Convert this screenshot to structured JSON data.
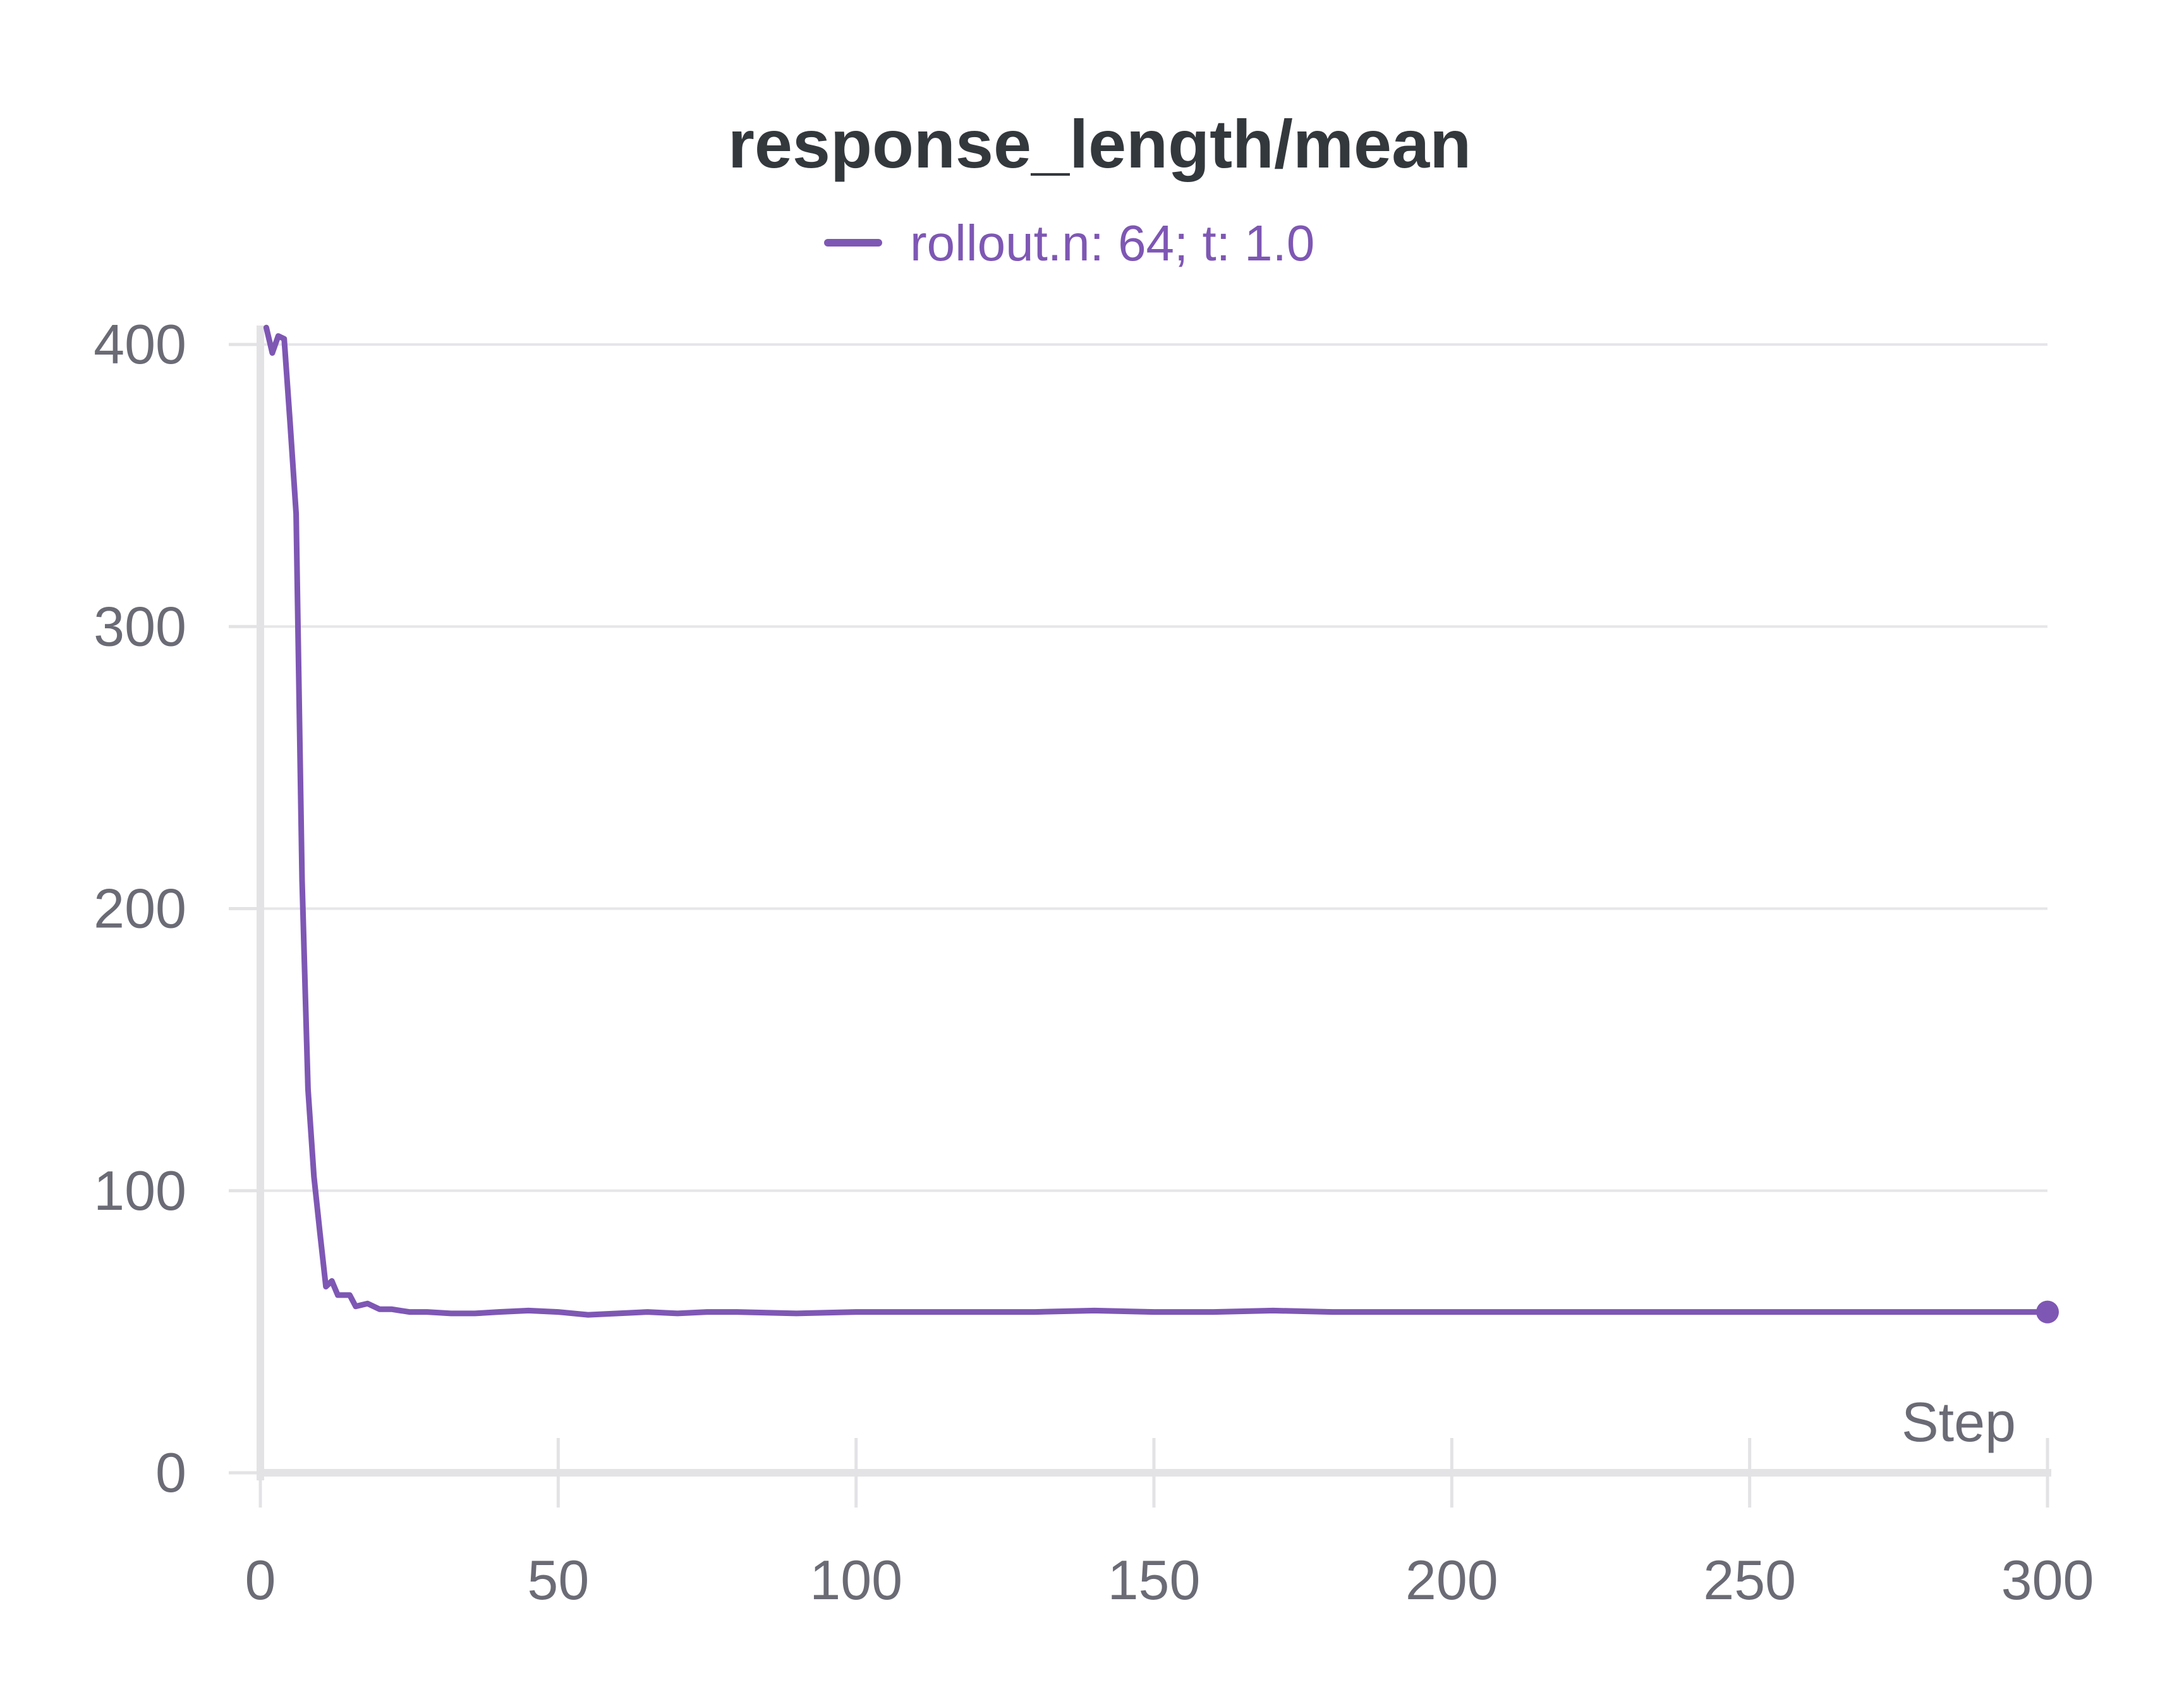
{
  "chart_data": {
    "type": "line",
    "title": "response_length/mean",
    "xlabel": "Step",
    "ylabel": "",
    "xlim": [
      0,
      300
    ],
    "ylim": [
      0,
      400
    ],
    "x_ticks": [
      0,
      50,
      100,
      150,
      200,
      250,
      300
    ],
    "x_tick_labels": [
      "0",
      "50",
      "100",
      "150",
      "200",
      "250",
      "300"
    ],
    "y_ticks": [
      0,
      100,
      200,
      300,
      400
    ],
    "y_tick_labels": [
      "0",
      "100",
      "200",
      "300",
      "400"
    ],
    "grid": "horizontal",
    "legend_position": "top-center",
    "series": [
      {
        "name": "rollout.n: 64; t: 1.0",
        "color": "#7e57b4",
        "x": [
          1,
          2,
          3,
          4,
          5,
          6,
          7,
          8,
          9,
          10,
          11,
          12,
          13,
          14,
          15,
          16,
          18,
          20,
          22,
          25,
          28,
          32,
          36,
          40,
          45,
          50,
          55,
          60,
          65,
          70,
          75,
          80,
          90,
          100,
          110,
          120,
          130,
          140,
          150,
          160,
          170,
          180,
          190,
          200,
          210,
          220,
          230,
          240,
          250,
          260,
          270,
          280,
          290,
          300
        ],
        "y": [
          406,
          397,
          403,
          402,
          372,
          340,
          210,
          136,
          105,
          85,
          66,
          68,
          63,
          63,
          63,
          59,
          60,
          58,
          58,
          57,
          57,
          56.5,
          56.5,
          57,
          57.5,
          57,
          56,
          56.5,
          57,
          56.5,
          57,
          57,
          56.5,
          57,
          57,
          57,
          57,
          57.5,
          57,
          57,
          57.5,
          57,
          57,
          57,
          57,
          57,
          57,
          57,
          57,
          57,
          57,
          57,
          57,
          57
        ]
      }
    ]
  }
}
